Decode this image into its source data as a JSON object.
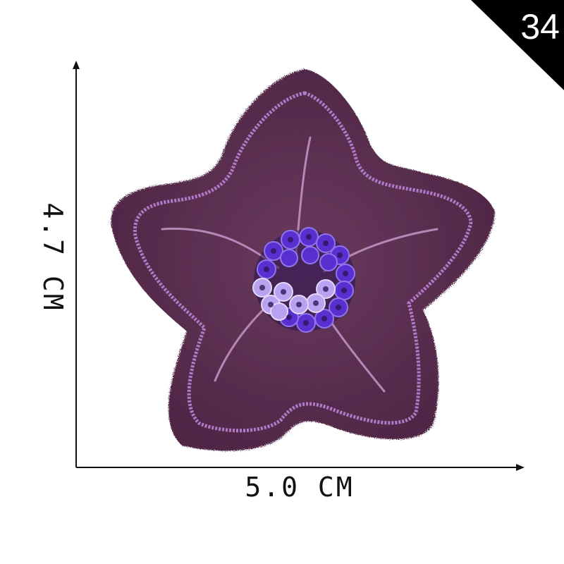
{
  "badge": {
    "number": "34",
    "color": "#000000"
  },
  "dimensions": {
    "width_label": "5.0 CM",
    "height_label": "4.7 CM"
  },
  "patch": {
    "shape": "five-petal-flower",
    "icon": "flower-icon",
    "fabric_color": "#5b2e4f",
    "stitch_color": "#b07ac8",
    "sequin_color": "#6a3ad8"
  },
  "colors": {
    "axis": "#111111",
    "background": "#ffffff"
  }
}
